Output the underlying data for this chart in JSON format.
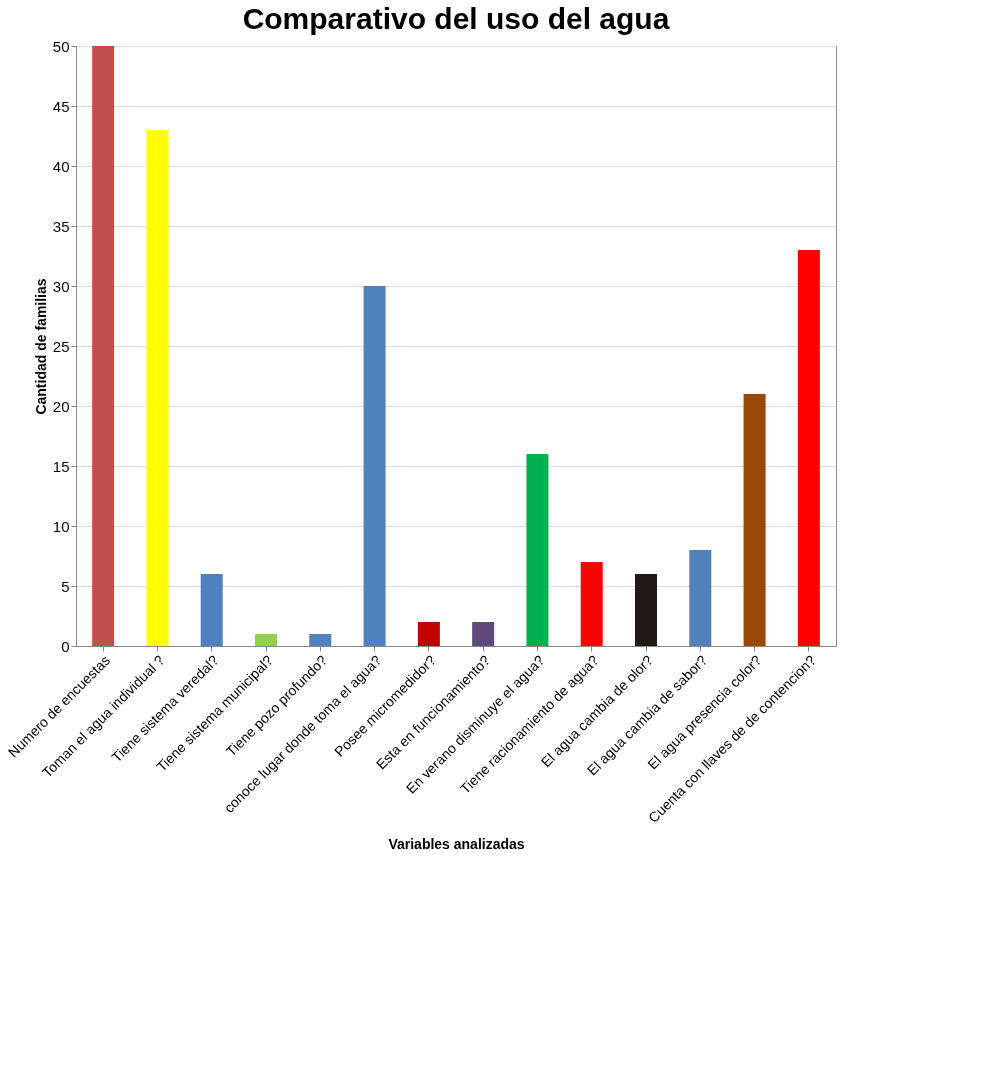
{
  "chart_data": {
    "type": "bar",
    "title": "Comparativo del uso del agua",
    "xlabel": "Variables  analizadas",
    "ylabel": "Cantidad de familias",
    "categories": [
      "Numero de encuestas",
      "Toman el agua individual ?",
      "Tiene sistema veredal?",
      "Tiene sistema municipal?",
      "Tiene pozo profundo?",
      "conoce lugar donde toma el agua?",
      "Posee micromedidor?",
      "Esta en funcionamiento?",
      "En verano disminuye el agua?",
      "Tiene racionamiento de agua?",
      "El agua cambia de olor?",
      "El agua cambia de sabor?",
      "El agua presencia color?",
      "Cuenta con llaves de de contencion?"
    ],
    "values": [
      50,
      43,
      6,
      1,
      1,
      30,
      2,
      2,
      16,
      7,
      6,
      8,
      21,
      33
    ],
    "colors": [
      "#c0504d",
      "#ffff00",
      "#4f81bd",
      "#92d050",
      "#4f81bd",
      "#4f81bd",
      "#c00000",
      "#604a7b",
      "#00b050",
      "#ff0000",
      "#1f1a17",
      "#4f81bd",
      "#984807",
      "#ff0000"
    ],
    "ylim": [
      0,
      50
    ],
    "yticks": [
      0,
      5,
      10,
      15,
      20,
      25,
      30,
      35,
      40,
      45,
      50
    ],
    "grid": "y",
    "legend": false
  }
}
